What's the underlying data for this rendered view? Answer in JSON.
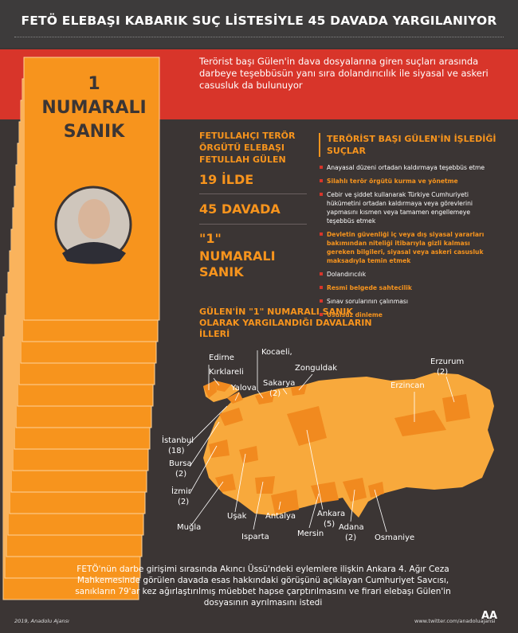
{
  "header": {
    "title": "FETÖ ELEBAŞI KABARIK SUÇ LİSTESİYLE 45 DAVADA YARGILANIYOR"
  },
  "intro": "Terörist başı Gülen'in dava dosyalarına giren suçları arasında darbeye teşebbüsün yanı sıra dolandırıcılık ile siyasal ve askeri casusluk da bulunuyor",
  "card": {
    "lines": [
      "1",
      "NUMARALI",
      "SANIK"
    ]
  },
  "profile": {
    "title": "FETULLAHÇI TERÖR ÖRGÜTÜ ELEBAŞI FETULLAH GÜLEN",
    "stats": [
      "19 İLDE",
      "45 DAVADA"
    ],
    "quote": "\"1\"",
    "label": "NUMARALI SANIK"
  },
  "crimes": {
    "title": "TERÖRİST BAŞI GÜLEN'İN İŞLEDİĞİ SUÇLAR",
    "items": [
      {
        "text": "Anayasal düzeni ortadan kaldırmaya teşebbüs etme",
        "highlight": false
      },
      {
        "text": "Silahlı terör örgütü kurma ve yönetme",
        "highlight": true
      },
      {
        "text": "Cebir ve şiddet kullanarak Türkiye Cumhuriyeti hükümetini ortadan kaldırmaya veya görevlerini yapmasını kısmen veya tamamen engellemeye teşebbüs etmek",
        "highlight": false
      },
      {
        "text": "Devletin güvenliği iç veya dış siyasal yararları bakımından niteliği itibarıyla gizli kalması gereken bilgileri, siyasal veya askeri casusluk maksadıyla temin etmek",
        "highlight": true
      },
      {
        "text": "Dolandırıcılık",
        "highlight": false
      },
      {
        "text": "Resmi belgede sahtecilik",
        "highlight": true
      },
      {
        "text": "Sınav sorularının çalınması",
        "highlight": false
      },
      {
        "text": "Usulsüz dinleme",
        "highlight": true
      }
    ]
  },
  "map": {
    "title": "GÜLEN'İN \"1\" NUMARALI SANIK OLARAK YARGILANDIĞI DAVALARIN İLLERİ",
    "labels": [
      {
        "lines": [
          "Edirne"
        ]
      },
      {
        "lines": [
          "Kırklareli"
        ]
      },
      {
        "lines": [
          "Yalova"
        ]
      },
      {
        "lines": [
          "Kocaeli,"
        ]
      },
      {
        "lines": [
          "Sakarya",
          "(2)"
        ]
      },
      {
        "lines": [
          "Zonguldak"
        ]
      },
      {
        "lines": [
          "Erzincan"
        ]
      },
      {
        "lines": [
          "Erzurum",
          "(2)"
        ]
      },
      {
        "lines": [
          "İstanbul",
          "(18)"
        ]
      },
      {
        "lines": [
          "Bursa",
          "(2)"
        ]
      },
      {
        "lines": [
          "İzmir",
          "(2)"
        ]
      },
      {
        "lines": [
          "Muğla"
        ]
      },
      {
        "lines": [
          "Uşak"
        ]
      },
      {
        "lines": [
          "Isparta"
        ]
      },
      {
        "lines": [
          "Antalya"
        ]
      },
      {
        "lines": [
          "Mersin"
        ]
      },
      {
        "lines": [
          "Ankara",
          "(5)"
        ]
      },
      {
        "lines": [
          "Adana",
          "(2)"
        ]
      },
      {
        "lines": [
          "Osmaniye"
        ]
      }
    ]
  },
  "footer": {
    "text": "FETÖ'nün darbe girişimi sırasında Akıncı Üssü'ndeki eylemlere ilişkin Ankara 4. Ağır Ceza Mahkemesinde görülen davada esas hakkındaki görüşünü açıklayan Cumhuriyet Savcısı, sanıkların 79'ar kez ağırlaştırılmış müebbet hapse çarptırılmasını ve firari elebaşı Gülen'in dosyasının ayrılmasını istedi",
    "credit": "2019, Anadolu Ajansı",
    "url": "www.twitter.com/anadoluajansi",
    "logo": "AA"
  }
}
